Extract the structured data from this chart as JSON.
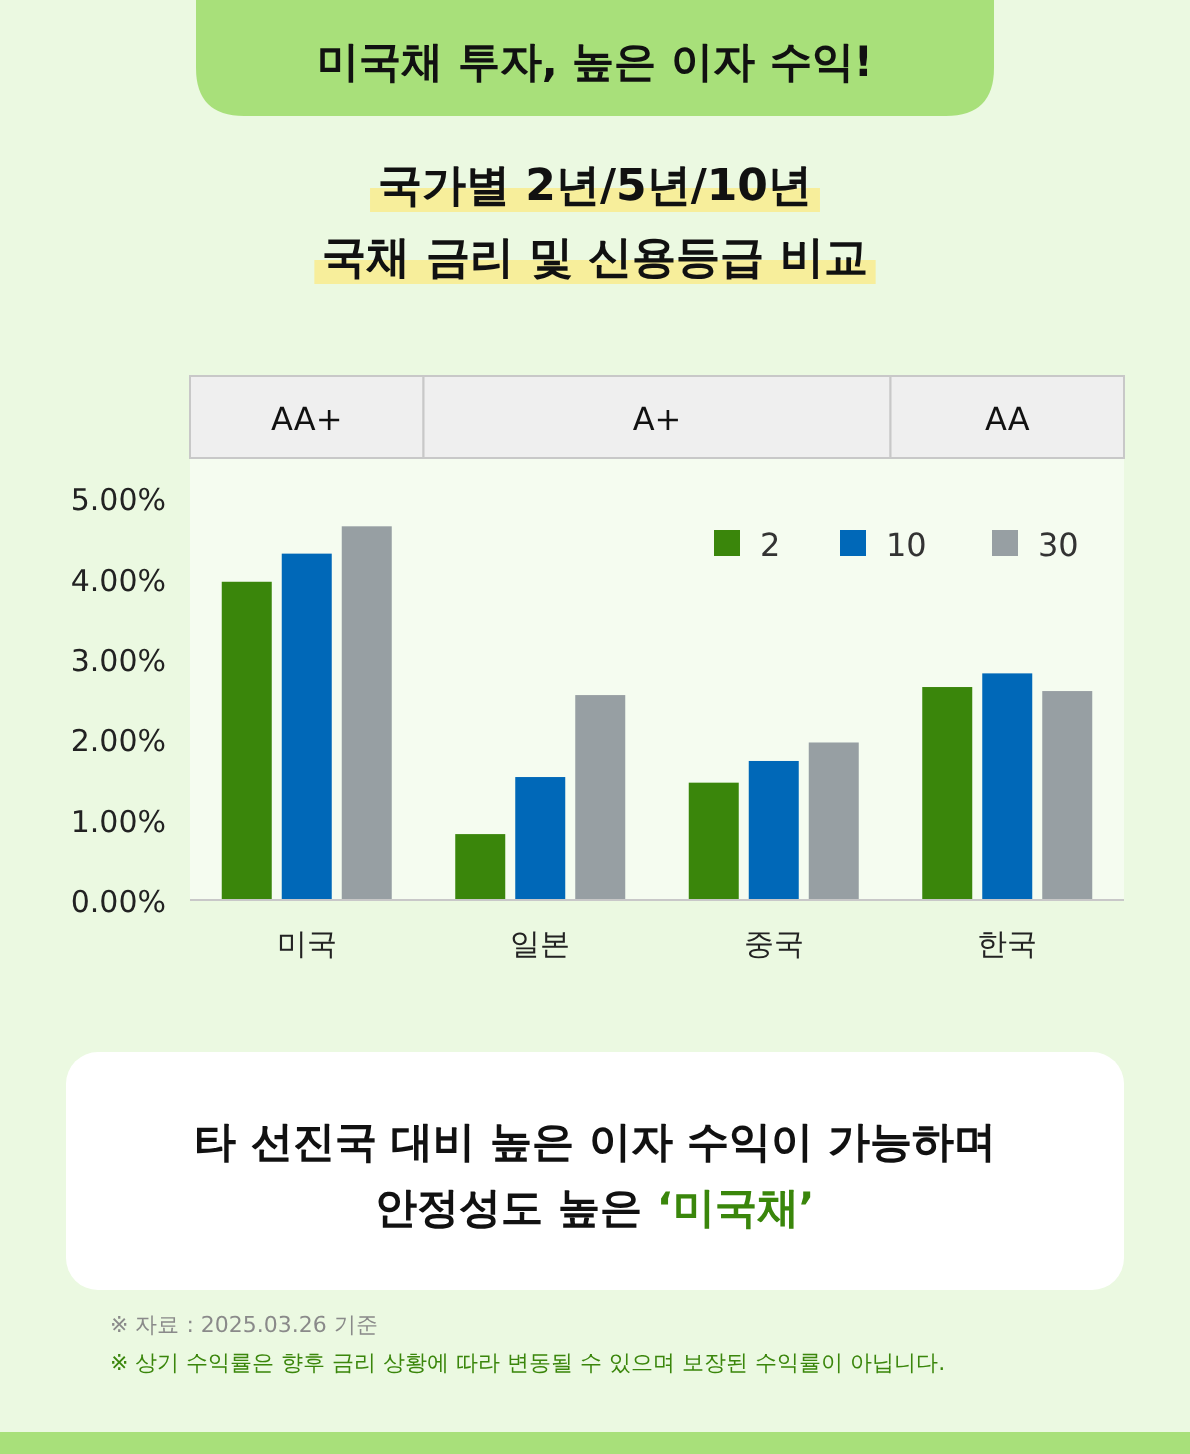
{
  "chart_data": {
    "type": "bar",
    "title": "미국채 투자, 높은 이자 수익!",
    "subtitle": "국가별 2년/5년/10년\n국채 금리 및 신용등급 비교",
    "categories": [
      "미국",
      "일본",
      "중국",
      "한국"
    ],
    "series": [
      {
        "name": "2",
        "color": "#3a860b",
        "values": [
          3.96,
          0.82,
          1.46,
          2.65
        ]
      },
      {
        "name": "10",
        "color": "#0068b8",
        "values": [
          4.31,
          1.53,
          1.73,
          2.82
        ]
      },
      {
        "name": "30",
        "color": "#979fa3",
        "values": [
          4.65,
          2.55,
          1.96,
          2.6
        ]
      }
    ],
    "ylim": [
      0,
      5.5
    ],
    "yticks": [
      {
        "value": 0,
        "label": "0.00%"
      },
      {
        "value": 1,
        "label": "1.00%"
      },
      {
        "value": 2,
        "label": "2.00%"
      },
      {
        "value": 3,
        "label": "3.00%"
      },
      {
        "value": 4,
        "label": "4.00%"
      },
      {
        "value": 5,
        "label": "5.00%"
      }
    ],
    "legend": "top right",
    "annotations": [
      "AA+",
      "A+",
      "AA",
      "타 선진국 대비 높은 이자 수익이 가능하며\n안정성도 높은 **‘미국채’**",
      "※ 자료 : 2025.03.26 기준",
      "※ 상기 수익률은 향후 금리 상황에 따라 변동될 수 있으며 보장된 수익률이 아닙니다."
    ]
  }
}
